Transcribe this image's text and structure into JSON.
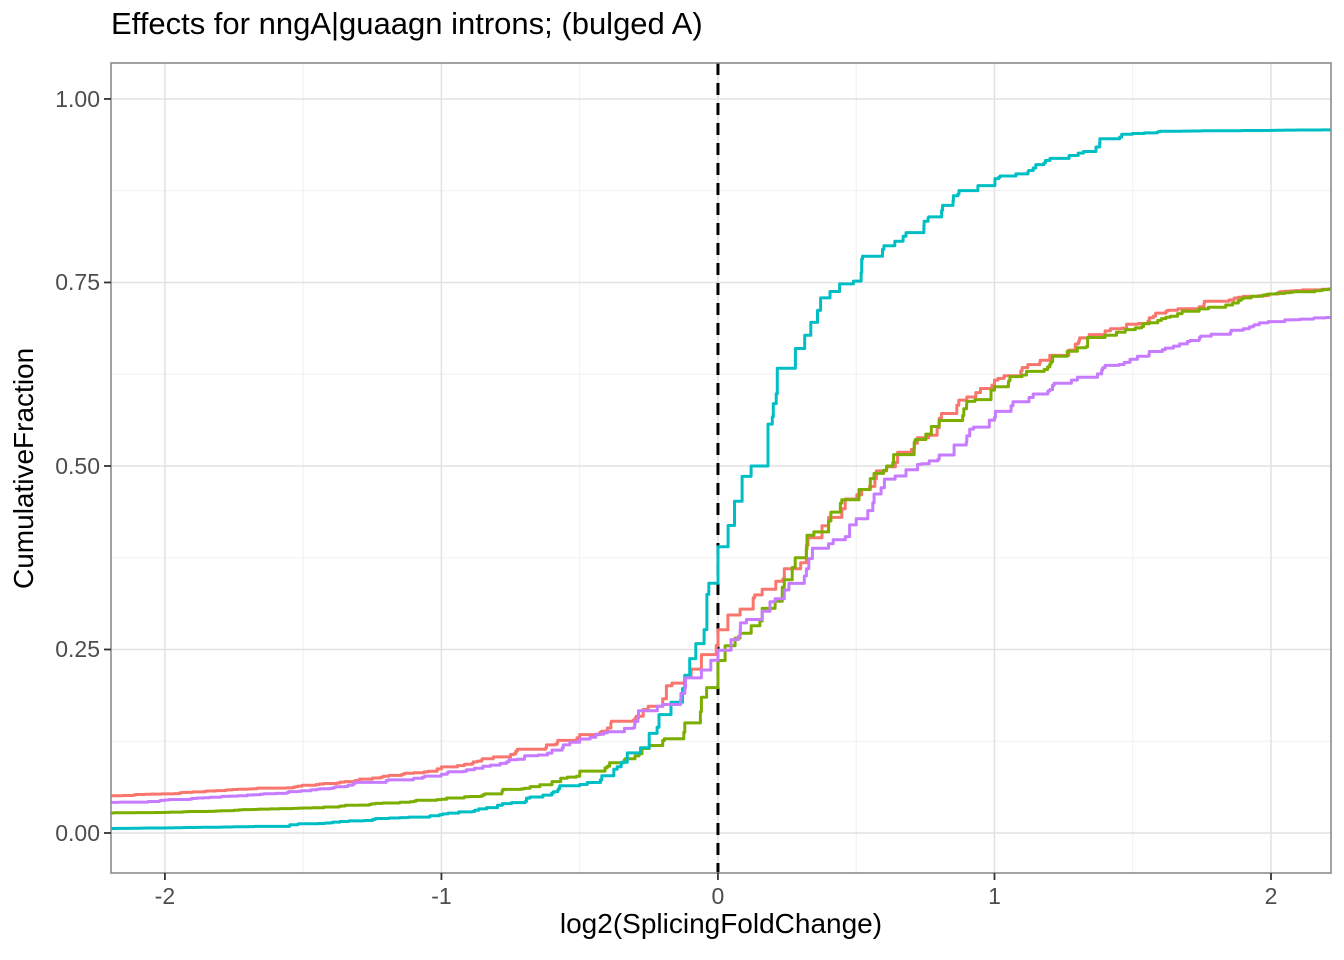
{
  "chart_data": {
    "type": "line",
    "subtype": "ecdf-step-curves",
    "title": "Effects for nngA|guaagn introns; (bulged A)",
    "xlabel": "log2(SplicingFoldChange)",
    "ylabel": "CumulativeFraction",
    "xlim": [
      -2.195,
      2.217
    ],
    "ylim": [
      -0.0545,
      1.049
    ],
    "x_ticks": {
      "values": [
        -2,
        -1,
        0,
        1,
        2
      ],
      "labels": [
        "-2",
        "-1",
        "0",
        "1",
        "2"
      ]
    },
    "y_ticks": {
      "values": [
        0,
        0.25,
        0.5,
        0.75,
        1.0
      ],
      "labels": [
        "0.00",
        "0.25",
        "0.50",
        "0.75",
        "1.00"
      ]
    },
    "x_minor": [
      -1.5,
      -0.5,
      0.5,
      1.5
    ],
    "y_minor": [
      0.125,
      0.375,
      0.625,
      0.875
    ],
    "grid": true,
    "legend_position": "none",
    "vline": {
      "x": 0,
      "style": "dashed",
      "color": "#000000"
    },
    "colors": {
      "major_grid": "#e2e2e2",
      "minor_grid": "#f0f0f0",
      "panel_border": "#8c8c8c",
      "tick_mark": "#333333",
      "tick_label": "#4d4d4d",
      "text": "#000000"
    },
    "series": [
      {
        "name": "salmon-red",
        "color": "#F8766D",
        "points": [
          [
            -2.22,
            0.05
          ],
          [
            -2.05,
            0.053
          ],
          [
            -1.9,
            0.056
          ],
          [
            -1.7,
            0.06
          ],
          [
            -1.5,
            0.065
          ],
          [
            -1.35,
            0.07
          ],
          [
            -1.22,
            0.076
          ],
          [
            -1.1,
            0.082
          ],
          [
            -1.0,
            0.09
          ],
          [
            -0.87,
            0.098
          ],
          [
            -0.75,
            0.107
          ],
          [
            -0.62,
            0.12
          ],
          [
            -0.5,
            0.134
          ],
          [
            -0.4,
            0.143
          ],
          [
            -0.3,
            0.156
          ],
          [
            -0.2,
            0.183
          ],
          [
            -0.12,
            0.213
          ],
          [
            -0.06,
            0.243
          ],
          [
            0,
            0.277
          ],
          [
            0.08,
            0.305
          ],
          [
            0.16,
            0.332
          ],
          [
            0.24,
            0.36
          ],
          [
            0.32,
            0.392
          ],
          [
            0.4,
            0.43
          ],
          [
            0.46,
            0.455
          ],
          [
            0.52,
            0.468
          ],
          [
            0.61,
            0.499
          ],
          [
            0.71,
            0.531
          ],
          [
            0.8,
            0.565
          ],
          [
            0.9,
            0.594
          ],
          [
            1.0,
            0.617
          ],
          [
            1.1,
            0.634
          ],
          [
            1.2,
            0.648
          ],
          [
            1.3,
            0.667
          ],
          [
            1.4,
            0.684
          ],
          [
            1.56,
            0.702
          ],
          [
            1.74,
            0.717
          ],
          [
            1.9,
            0.731
          ],
          [
            2.05,
            0.738
          ],
          [
            2.22,
            0.742
          ]
        ]
      },
      {
        "name": "olive-green",
        "color": "#7CAE00",
        "points": [
          [
            -2.22,
            0.027
          ],
          [
            -2.0,
            0.028
          ],
          [
            -1.75,
            0.031
          ],
          [
            -1.5,
            0.034
          ],
          [
            -1.3,
            0.038
          ],
          [
            -1.15,
            0.042
          ],
          [
            -1.0,
            0.046
          ],
          [
            -0.85,
            0.052
          ],
          [
            -0.7,
            0.061
          ],
          [
            -0.6,
            0.07
          ],
          [
            -0.5,
            0.08
          ],
          [
            -0.4,
            0.091
          ],
          [
            -0.3,
            0.105
          ],
          [
            -0.2,
            0.126
          ],
          [
            -0.12,
            0.15
          ],
          [
            -0.06,
            0.185
          ],
          [
            0,
            0.235
          ],
          [
            0.08,
            0.272
          ],
          [
            0.16,
            0.306
          ],
          [
            0.24,
            0.345
          ],
          [
            0.32,
            0.387
          ],
          [
            0.4,
            0.425
          ],
          [
            0.51,
            0.468
          ],
          [
            0.61,
            0.5
          ],
          [
            0.71,
            0.533
          ],
          [
            0.8,
            0.562
          ],
          [
            0.9,
            0.588
          ],
          [
            1.0,
            0.608
          ],
          [
            1.1,
            0.624
          ],
          [
            1.2,
            0.639
          ],
          [
            1.3,
            0.661
          ],
          [
            1.4,
            0.678
          ],
          [
            1.56,
            0.695
          ],
          [
            1.74,
            0.714
          ],
          [
            1.9,
            0.729
          ],
          [
            2.05,
            0.736
          ],
          [
            2.22,
            0.741
          ]
        ]
      },
      {
        "name": "teal",
        "color": "#00BFC4",
        "points": [
          [
            -2.22,
            0.006
          ],
          [
            -2.0,
            0.007
          ],
          [
            -1.8,
            0.008
          ],
          [
            -1.62,
            0.009
          ],
          [
            -1.52,
            0.012
          ],
          [
            -1.4,
            0.014
          ],
          [
            -1.28,
            0.017
          ],
          [
            -1.15,
            0.021
          ],
          [
            -1.0,
            0.025
          ],
          [
            -0.88,
            0.031
          ],
          [
            -0.78,
            0.04
          ],
          [
            -0.68,
            0.049
          ],
          [
            -0.58,
            0.058
          ],
          [
            -0.5,
            0.066
          ],
          [
            -0.42,
            0.078
          ],
          [
            -0.35,
            0.093
          ],
          [
            -0.28,
            0.116
          ],
          [
            -0.22,
            0.144
          ],
          [
            -0.17,
            0.178
          ],
          [
            -0.12,
            0.215
          ],
          [
            -0.08,
            0.258
          ],
          [
            -0.04,
            0.325
          ],
          [
            0,
            0.39
          ],
          [
            0.06,
            0.452
          ],
          [
            0.12,
            0.5
          ],
          [
            0.2,
            0.585
          ],
          [
            0.28,
            0.66
          ],
          [
            0.36,
            0.712
          ],
          [
            0.44,
            0.748
          ],
          [
            0.52,
            0.782
          ],
          [
            0.6,
            0.8
          ],
          [
            0.68,
            0.818
          ],
          [
            0.76,
            0.838
          ],
          [
            0.85,
            0.861
          ],
          [
            0.94,
            0.882
          ],
          [
            1.02,
            0.895
          ],
          [
            1.14,
            0.906
          ],
          [
            1.27,
            0.923
          ],
          [
            1.38,
            0.94
          ],
          [
            1.46,
            0.952
          ],
          [
            1.6,
            0.956
          ],
          [
            1.9,
            0.957
          ],
          [
            2.22,
            0.958
          ]
        ]
      },
      {
        "name": "purple",
        "color": "#C77CFF",
        "points": [
          [
            -2.22,
            0.041
          ],
          [
            -2.0,
            0.045
          ],
          [
            -1.8,
            0.049
          ],
          [
            -1.6,
            0.054
          ],
          [
            -1.4,
            0.061
          ],
          [
            -1.2,
            0.07
          ],
          [
            -1.0,
            0.08
          ],
          [
            -0.85,
            0.091
          ],
          [
            -0.7,
            0.103
          ],
          [
            -0.6,
            0.113
          ],
          [
            -0.5,
            0.128
          ],
          [
            -0.4,
            0.138
          ],
          [
            -0.3,
            0.152
          ],
          [
            -0.2,
            0.175
          ],
          [
            -0.12,
            0.198
          ],
          [
            -0.06,
            0.222
          ],
          [
            0,
            0.249
          ],
          [
            0.08,
            0.276
          ],
          [
            0.16,
            0.302
          ],
          [
            0.24,
            0.331
          ],
          [
            0.32,
            0.36
          ],
          [
            0.4,
            0.394
          ],
          [
            0.5,
            0.428
          ],
          [
            0.56,
            0.45
          ],
          [
            0.68,
            0.495
          ],
          [
            0.8,
            0.515
          ],
          [
            0.9,
            0.541
          ],
          [
            1.0,
            0.566
          ],
          [
            1.06,
            0.582
          ],
          [
            1.14,
            0.598
          ],
          [
            1.2,
            0.604
          ],
          [
            1.3,
            0.621
          ],
          [
            1.4,
            0.637
          ],
          [
            1.56,
            0.656
          ],
          [
            1.74,
            0.672
          ],
          [
            1.9,
            0.687
          ],
          [
            2.05,
            0.699
          ],
          [
            2.22,
            0.703
          ]
        ]
      }
    ]
  }
}
